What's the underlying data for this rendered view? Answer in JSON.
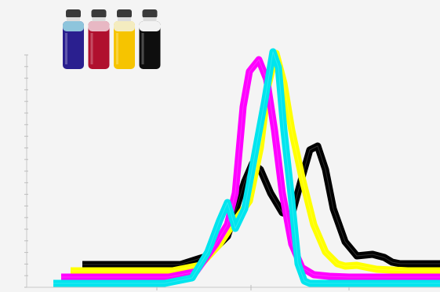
{
  "bottles": [
    {
      "name": "blue-ink-bottle",
      "cap": "#3a3a3a",
      "fill": "#2a1f8f",
      "top": "#8ec5dc"
    },
    {
      "name": "magenta-ink-bottle",
      "cap": "#3a3a3a",
      "fill": "#b0102e",
      "top": "#e8b8c4"
    },
    {
      "name": "yellow-ink-bottle",
      "cap": "#3a3a3a",
      "fill": "#f6c400",
      "top": "#f4ecc0"
    },
    {
      "name": "black-ink-bottle",
      "cap": "#3a3a3a",
      "fill": "#0e0e0e",
      "top": "#f2f2f2"
    }
  ],
  "chart_data": {
    "type": "line",
    "title": "",
    "xlabel": "",
    "ylabel": "",
    "xlim": [
      0,
      561
    ],
    "ylim": [
      0,
      300
    ],
    "grid": false,
    "legend": "none",
    "series": [
      {
        "color": "#000000",
        "x": [
          105,
          230,
          265,
          290,
          312,
          322,
          332,
          345,
          360,
          372,
          385,
          395,
          405,
          415,
          425,
          440,
          455,
          475,
          490,
          500,
          510,
          530,
          561
        ],
        "y": [
          29,
          29,
          40,
          65,
          135,
          158,
          150,
          120,
          95,
          92,
          140,
          175,
          180,
          150,
          100,
          58,
          40,
          42,
          38,
          32,
          30,
          30,
          30
        ]
      },
      {
        "color": "#ffff00",
        "x": [
          90,
          220,
          255,
          280,
          300,
          318,
          332,
          342,
          352,
          362,
          372,
          385,
          400,
          415,
          430,
          440,
          455,
          480,
          520,
          561
        ],
        "y": [
          21,
          21,
          28,
          55,
          85,
          110,
          178,
          258,
          298,
          260,
          200,
          140,
          80,
          45,
          30,
          27,
          28,
          23,
          21,
          21
        ]
      },
      {
        "color": "#ff00ff",
        "x": [
          78,
          215,
          250,
          275,
          290,
          300,
          310,
          318,
          330,
          340,
          350,
          360,
          372,
          385,
          400,
          420,
          445,
          470,
          561
        ],
        "y": [
          13,
          13,
          20,
          55,
          80,
          120,
          230,
          275,
          290,
          265,
          200,
          120,
          55,
          25,
          16,
          14,
          13,
          13,
          13
        ]
      },
      {
        "color": "#00e5ee",
        "x": [
          68,
          210,
          245,
          265,
          280,
          290,
          300,
          312,
          325,
          338,
          348,
          355,
          362,
          372,
          380,
          388,
          395,
          561
        ],
        "y": [
          5,
          5,
          12,
          45,
          85,
          108,
          75,
          100,
          170,
          240,
          300,
          280,
          200,
          110,
          30,
          8,
          5,
          5
        ]
      }
    ]
  }
}
